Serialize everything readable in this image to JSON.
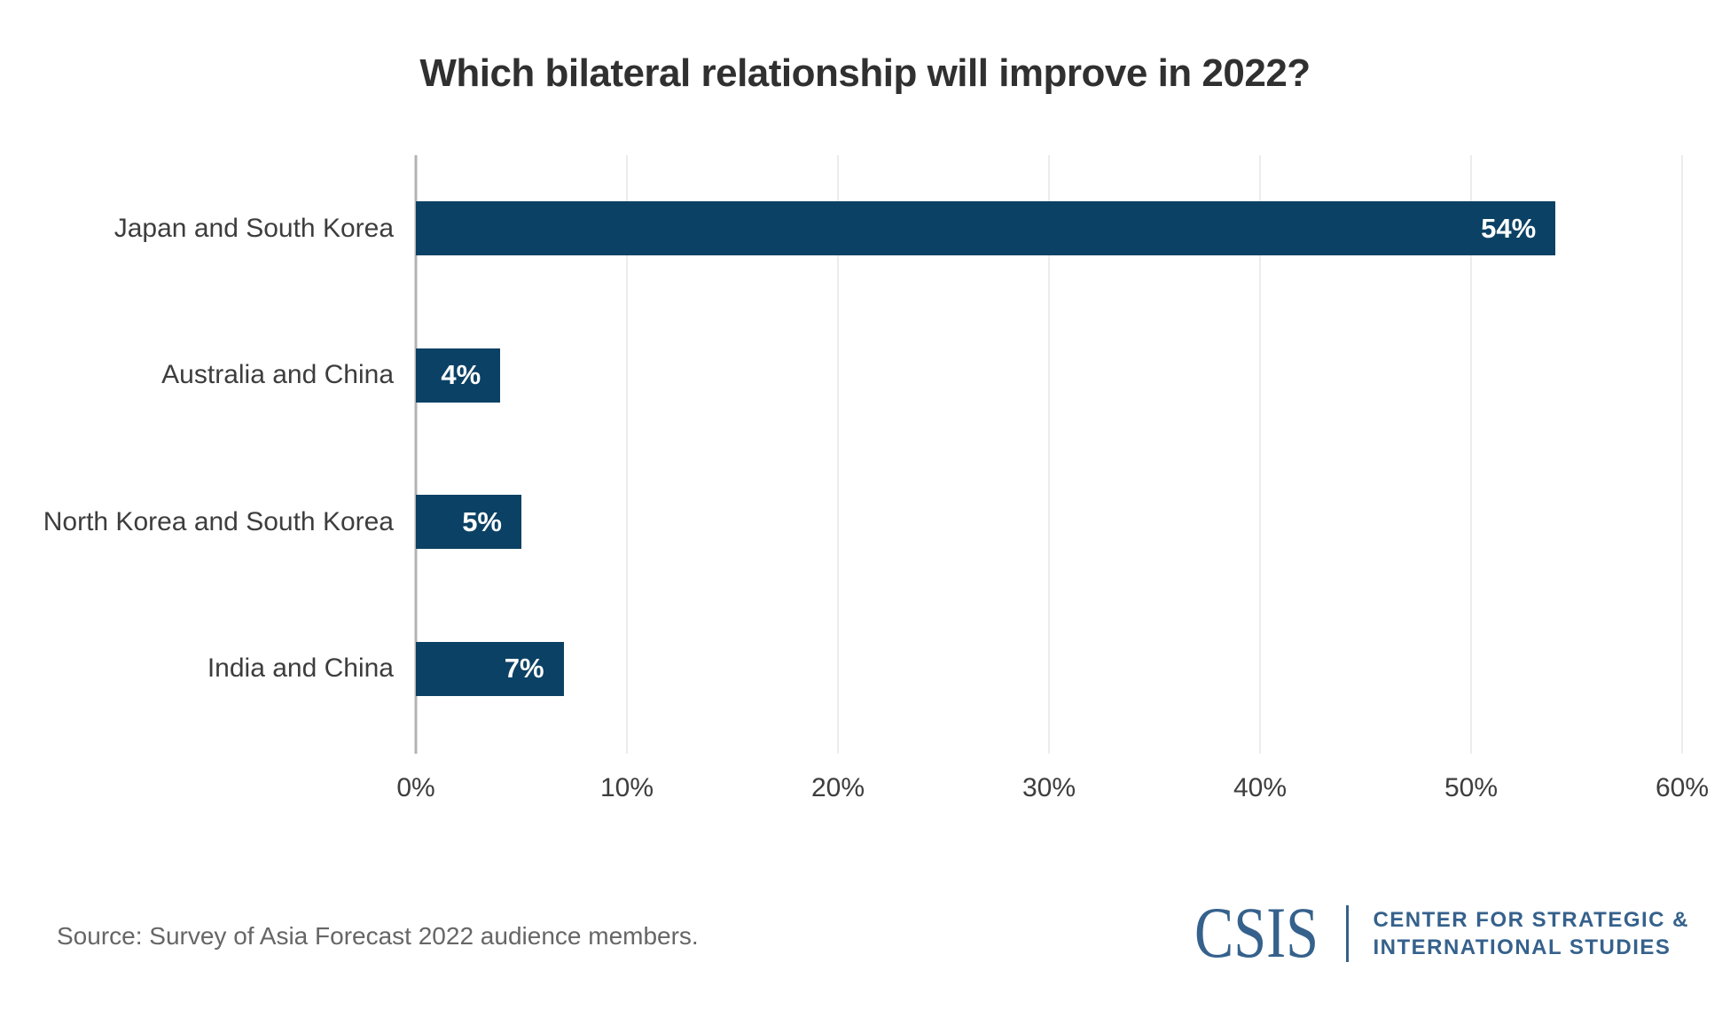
{
  "chart_data": {
    "type": "bar",
    "orientation": "horizontal",
    "title": "Which bilateral relationship will improve in 2022?",
    "categories": [
      "Japan and South Korea",
      "Australia and China",
      "North Korea and South Korea",
      "India and China"
    ],
    "values": [
      54,
      4,
      5,
      7
    ],
    "value_labels": [
      "54%",
      "4%",
      "5%",
      "7%"
    ],
    "xlabel": "",
    "ylabel": "",
    "xlim": [
      0,
      60
    ],
    "x_tick_labels": [
      "0%",
      "10%",
      "20%",
      "30%",
      "40%",
      "50%",
      "60%"
    ],
    "grid": "vertical gridlines only",
    "legend": "none",
    "colors": {
      "bar": "#0B4164",
      "value_label": "#FFFFFF",
      "gridline": "#ECECEC",
      "axis_line": "#B3B3B3",
      "tick_text": "#3D3D3D"
    }
  },
  "footer": {
    "source": "Source: Survey of Asia Forecast 2022 audience members.",
    "logo": {
      "wordmark": "CSIS",
      "line1": "CENTER FOR STRATEGIC &",
      "line2": "INTERNATIONAL STUDIES",
      "color": "#35618C"
    }
  }
}
